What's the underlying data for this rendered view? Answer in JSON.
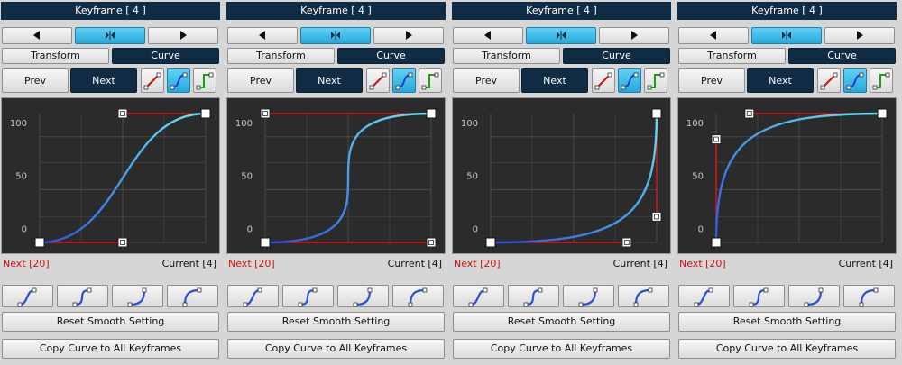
{
  "panels": [
    {
      "title": "Keyframe [ 4 ]",
      "nav": [
        "prev-keyframe",
        "mirror",
        "next-keyframe"
      ],
      "tabs": [
        "Transform",
        "Curve"
      ],
      "prev_label": "Prev",
      "next_label": "Next",
      "y_ticks": [
        "100",
        "50",
        "0"
      ],
      "next_label_text": "Next [20]",
      "current_label_text": "Current [4]",
      "active_tab": "Curve",
      "active_shape": "s-curve",
      "reset_label": "Reset Smooth Setting",
      "copy_label": "Copy Curve to All Keyframes",
      "curve": "ease-in-out"
    },
    {
      "title": "Keyframe [ 4 ]",
      "tabs": [
        "Transform",
        "Curve"
      ],
      "prev_label": "Prev",
      "next_label": "Next",
      "y_ticks": [
        "100",
        "50",
        "0"
      ],
      "next_label_text": "Next [20]",
      "current_label_text": "Current [4]",
      "reset_label": "Reset Smooth Setting",
      "copy_label": "Copy Curve to All Keyframes",
      "curve": "strong-ease-in-out"
    },
    {
      "title": "Keyframe [ 4 ]",
      "tabs": [
        "Transform",
        "Curve"
      ],
      "prev_label": "Prev",
      "next_label": "Next",
      "y_ticks": [
        "100",
        "50",
        "0"
      ],
      "next_label_text": "Next [20]",
      "current_label_text": "Current [4]",
      "reset_label": "Reset Smooth Setting",
      "copy_label": "Copy Curve to All Keyframes",
      "curve": "ease-in"
    },
    {
      "title": "Keyframe [ 4 ]",
      "tabs": [
        "Transform",
        "Curve"
      ],
      "prev_label": "Prev",
      "next_label": "Next",
      "y_ticks": [
        "100",
        "50",
        "0"
      ],
      "next_label_text": "Next [20]",
      "current_label_text": "Current [4]",
      "reset_label": "Reset Smooth Setting",
      "copy_label": "Copy Curve to All Keyframes",
      "curve": "ease-out"
    }
  ],
  "colors": {
    "title_bg": "#0f2c44",
    "selected": "#34b8e6",
    "handle_line": "#e01515",
    "curve_start": "#2f52e0",
    "curve_end": "#5fe6f2"
  },
  "icons": {
    "nav": [
      "triangle-left-icon",
      "mirror-icon",
      "triangle-right-icon"
    ],
    "shapes": [
      "linear-curve-icon",
      "s-curve-icon",
      "step-curve-icon"
    ],
    "presets": [
      "ease-in-out-preset-icon",
      "strong-ease-preset-icon",
      "ease-in-preset-icon",
      "ease-out-preset-icon"
    ]
  }
}
